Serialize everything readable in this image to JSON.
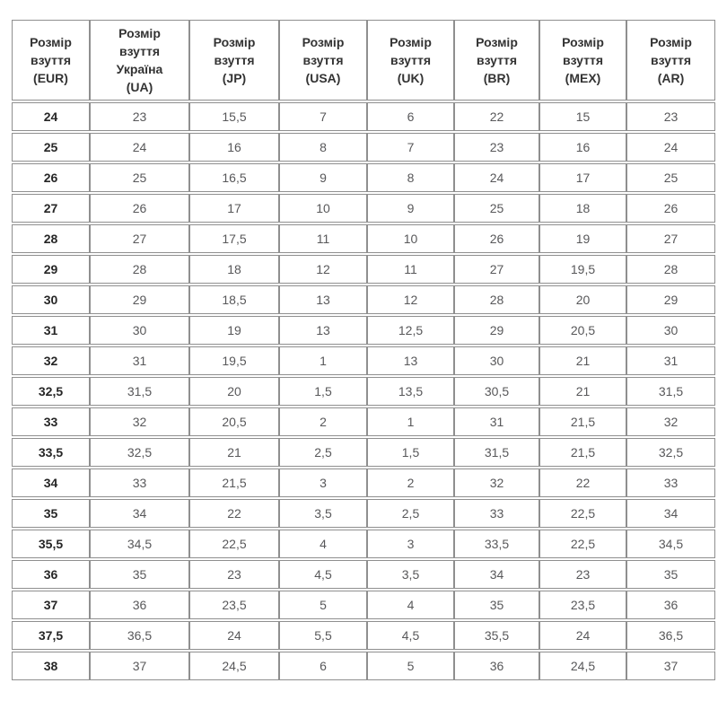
{
  "page": {
    "background": "#ffffff"
  },
  "table": {
    "title_semantic": "shoe-size-conversion-table",
    "colors": {
      "border": "#8f8f8f",
      "header_text": "#333333",
      "first_col_text": "#262626",
      "cell_text": "#58585a",
      "row_bg": "#ffffff"
    },
    "columns": [
      "Розмір\nвзуття\n(EUR)",
      "Розмір\nвзуття\nУкраїна\n(UA)",
      "Розмір\nвзуття\n(JP)",
      "Розмір\nвзуття\n(USA)",
      "Розмір\nвзуття\n(UK)",
      "Розмір\nвзуття\n(BR)",
      "Розмір\nвзуття\n(MEX)",
      "Розмір\nвзуття\n(AR)"
    ],
    "rows": [
      [
        "24",
        "23",
        "15,5",
        "7",
        "6",
        "22",
        "15",
        "23"
      ],
      [
        "25",
        "24",
        "16",
        "8",
        "7",
        "23",
        "16",
        "24"
      ],
      [
        "26",
        "25",
        "16,5",
        "9",
        "8",
        "24",
        "17",
        "25"
      ],
      [
        "27",
        "26",
        "17",
        "10",
        "9",
        "25",
        "18",
        "26"
      ],
      [
        "28",
        "27",
        "17,5",
        "11",
        "10",
        "26",
        "19",
        "27"
      ],
      [
        "29",
        "28",
        "18",
        "12",
        "11",
        "27",
        "19,5",
        "28"
      ],
      [
        "30",
        "29",
        "18,5",
        "13",
        "12",
        "28",
        "20",
        "29"
      ],
      [
        "31",
        "30",
        "19",
        "13",
        "12,5",
        "29",
        "20,5",
        "30"
      ],
      [
        "32",
        "31",
        "19,5",
        "1",
        "13",
        "30",
        "21",
        "31"
      ],
      [
        "32,5",
        "31,5",
        "20",
        "1,5",
        "13,5",
        "30,5",
        "21",
        "31,5"
      ],
      [
        "33",
        "32",
        "20,5",
        "2",
        "1",
        "31",
        "21,5",
        "32"
      ],
      [
        "33,5",
        "32,5",
        "21",
        "2,5",
        "1,5",
        "31,5",
        "21,5",
        "32,5"
      ],
      [
        "34",
        "33",
        "21,5",
        "3",
        "2",
        "32",
        "22",
        "33"
      ],
      [
        "35",
        "34",
        "22",
        "3,5",
        "2,5",
        "33",
        "22,5",
        "34"
      ],
      [
        "35,5",
        "34,5",
        "22,5",
        "4",
        "3",
        "33,5",
        "22,5",
        "34,5"
      ],
      [
        "36",
        "35",
        "23",
        "4,5",
        "3,5",
        "34",
        "23",
        "35"
      ],
      [
        "37",
        "36",
        "23,5",
        "5",
        "4",
        "35",
        "23,5",
        "36"
      ],
      [
        "37,5",
        "36,5",
        "24",
        "5,5",
        "4,5",
        "35,5",
        "24",
        "36,5"
      ],
      [
        "38",
        "37",
        "24,5",
        "6",
        "5",
        "36",
        "24,5",
        "37"
      ]
    ]
  }
}
